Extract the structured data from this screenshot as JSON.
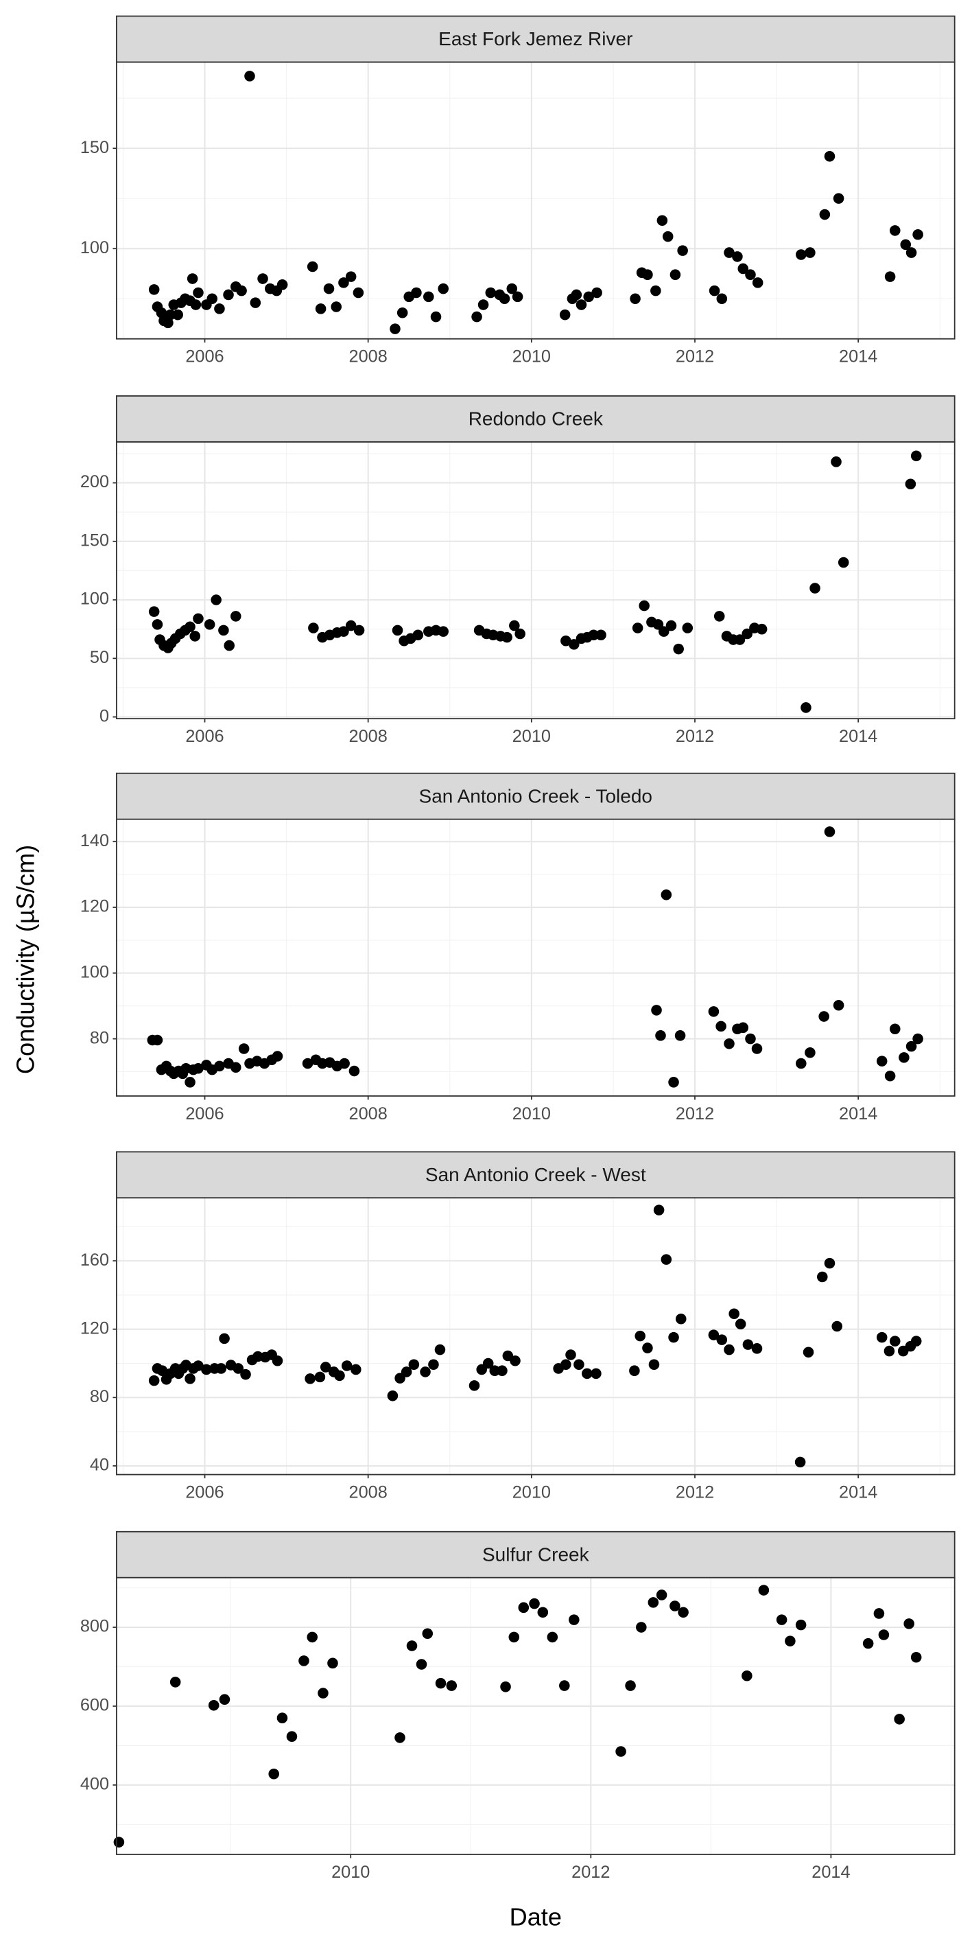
{
  "xlabel": "Date",
  "ylabel": "Conductivity (µS/cm)",
  "chart_data": [
    {
      "type": "scatter",
      "title": "East Fork Jemez River",
      "color": "#000000",
      "grid": true,
      "x": [
        2005.38,
        2005.42,
        2005.47,
        2005.5,
        2005.55,
        2005.58,
        2005.62,
        2005.67,
        2005.71,
        2005.76,
        2005.82,
        2005.85,
        2005.89,
        2005.92,
        2006.02,
        2006.09,
        2006.18,
        2006.29,
        2006.38,
        2006.45,
        2006.55,
        2006.62,
        2006.71,
        2006.8,
        2006.88,
        2006.95,
        2007.32,
        2007.42,
        2007.52,
        2007.61,
        2007.7,
        2007.79,
        2007.88,
        2008.33,
        2008.42,
        2008.5,
        2008.59,
        2008.74,
        2008.83,
        2008.92,
        2009.33,
        2009.41,
        2009.5,
        2009.61,
        2009.67,
        2009.76,
        2009.83,
        2010.41,
        2010.5,
        2010.55,
        2010.61,
        2010.7,
        2010.8,
        2011.27,
        2011.35,
        2011.42,
        2011.52,
        2011.6,
        2011.67,
        2011.76,
        2011.85,
        2012.24,
        2012.33,
        2012.42,
        2012.52,
        2012.59,
        2012.68,
        2012.77,
        2013.3,
        2013.41,
        2013.59,
        2013.65,
        2013.76,
        2014.39,
        2014.45,
        2014.58,
        2014.65,
        2014.73
      ],
      "values": [
        79.6,
        71,
        68,
        64,
        63,
        67,
        72,
        67,
        73,
        75,
        74,
        85,
        72,
        78,
        72,
        75,
        70,
        77,
        81,
        79,
        186,
        73,
        85,
        80,
        79,
        82,
        91,
        70,
        80,
        71,
        83,
        86,
        78,
        60,
        68,
        76,
        78,
        76,
        66,
        80,
        66,
        72,
        78,
        77,
        75,
        80,
        76,
        67,
        75,
        77,
        72,
        76,
        78,
        75,
        88,
        87,
        79,
        114,
        106,
        87,
        99,
        79,
        75,
        98,
        96,
        90,
        87,
        83,
        97,
        98,
        117,
        146,
        125,
        86,
        109,
        102,
        98,
        107
      ],
      "xlim": [
        2004.92,
        2015.18
      ],
      "xticks": [
        2006,
        2008,
        2010,
        2012,
        2014
      ],
      "ylim": [
        55,
        193
      ],
      "yticks": [
        100,
        150
      ]
    },
    {
      "type": "scatter",
      "title": "Redondo Creek",
      "color": "#000000",
      "grid": true,
      "x": [
        2005.38,
        2005.42,
        2005.45,
        2005.5,
        2005.55,
        2005.59,
        2005.64,
        2005.7,
        2005.76,
        2005.82,
        2005.88,
        2005.92,
        2006.06,
        2006.14,
        2006.23,
        2006.3,
        2006.38,
        2007.33,
        2007.44,
        2007.53,
        2007.62,
        2007.7,
        2007.79,
        2007.89,
        2008.36,
        2008.44,
        2008.52,
        2008.61,
        2008.74,
        2008.83,
        2008.92,
        2009.36,
        2009.45,
        2009.53,
        2009.62,
        2009.7,
        2009.79,
        2009.86,
        2010.42,
        2010.52,
        2010.61,
        2010.68,
        2010.76,
        2010.85,
        2011.3,
        2011.38,
        2011.47,
        2011.55,
        2011.62,
        2011.71,
        2011.8,
        2011.91,
        2012.3,
        2012.39,
        2012.47,
        2012.55,
        2012.64,
        2012.73,
        2012.82,
        2013.36,
        2013.47,
        2013.73,
        2013.82,
        2014.64,
        2014.71
      ],
      "values": [
        90,
        79,
        66,
        61,
        59,
        63,
        67,
        71,
        74,
        77,
        69,
        84,
        79,
        100,
        74,
        61,
        86,
        76,
        68,
        70,
        72,
        73,
        78,
        74,
        74,
        65,
        67,
        70,
        73,
        74,
        73,
        74,
        71,
        70,
        69,
        68,
        78,
        71,
        65,
        62,
        67,
        68,
        70,
        70,
        76,
        95,
        81,
        79,
        73,
        78,
        58,
        76,
        86,
        69,
        66,
        66,
        71,
        76,
        75,
        8,
        110,
        218,
        132,
        199,
        223
      ],
      "xlim": [
        2004.92,
        2015.18
      ],
      "xticks": [
        2006,
        2008,
        2010,
        2012,
        2014
      ],
      "ylim": [
        -1.5,
        235
      ],
      "yticks": [
        0,
        50,
        100,
        150,
        200
      ]
    },
    {
      "type": "scatter",
      "title": "San Antonio Creek - Toledo",
      "color": "#000000",
      "grid": true,
      "x": [
        2005.36,
        2005.42,
        2005.47,
        2005.53,
        2005.58,
        2005.62,
        2005.68,
        2005.73,
        2005.77,
        2005.82,
        2005.86,
        2005.92,
        2006.02,
        2006.09,
        2006.18,
        2006.29,
        2006.38,
        2006.48,
        2006.55,
        2006.64,
        2006.73,
        2006.82,
        2006.89,
        2007.26,
        2007.36,
        2007.44,
        2007.53,
        2007.62,
        2007.71,
        2007.83,
        2011.53,
        2011.58,
        2011.65,
        2011.74,
        2011.82,
        2012.23,
        2012.32,
        2012.42,
        2012.52,
        2012.59,
        2012.68,
        2012.76,
        2013.3,
        2013.41,
        2013.58,
        2013.65,
        2013.76,
        2014.29,
        2014.39,
        2014.45,
        2014.56,
        2014.65,
        2014.73
      ],
      "values": [
        79.6,
        79.6,
        70.6,
        71.7,
        70.2,
        69.4,
        70.2,
        69.4,
        71,
        66.8,
        70.6,
        71,
        72,
        70.6,
        71.7,
        72.5,
        71.3,
        77,
        72.5,
        73.2,
        72.5,
        73.6,
        74.7,
        72.5,
        73.6,
        72.5,
        72.8,
        71.7,
        72.5,
        70.2,
        88.7,
        81,
        123.8,
        66.8,
        81,
        88.3,
        83.8,
        78.5,
        83,
        83.4,
        80,
        77,
        72.5,
        75.8,
        86.8,
        143,
        90.2,
        73.2,
        68.7,
        83,
        74.3,
        77.7,
        80
      ],
      "xlim": [
        2004.92,
        2015.18
      ],
      "xticks": [
        2006,
        2008,
        2010,
        2012,
        2014
      ],
      "ylim": [
        62.6,
        146.8
      ],
      "yticks": [
        80,
        100,
        120,
        140
      ]
    },
    {
      "type": "scatter",
      "title": "San Antonio Creek - West",
      "color": "#000000",
      "grid": true,
      "x": [
        2005.38,
        2005.42,
        2005.48,
        2005.53,
        2005.58,
        2005.64,
        2005.68,
        2005.73,
        2005.77,
        2005.82,
        2005.86,
        2005.92,
        2006.02,
        2006.12,
        2006.2,
        2006.24,
        2006.32,
        2006.41,
        2006.5,
        2006.58,
        2006.65,
        2006.74,
        2006.82,
        2006.89,
        2007.29,
        2007.41,
        2007.48,
        2007.58,
        2007.65,
        2007.74,
        2007.85,
        2008.3,
        2008.39,
        2008.47,
        2008.56,
        2008.7,
        2008.8,
        2008.88,
        2009.3,
        2009.39,
        2009.47,
        2009.55,
        2009.64,
        2009.71,
        2009.8,
        2010.33,
        2010.42,
        2010.48,
        2010.58,
        2010.68,
        2010.79,
        2011.26,
        2011.33,
        2011.42,
        2011.5,
        2011.56,
        2011.65,
        2011.74,
        2011.83,
        2012.23,
        2012.33,
        2012.42,
        2012.48,
        2012.56,
        2012.65,
        2012.76,
        2013.29,
        2013.39,
        2013.56,
        2013.65,
        2013.74,
        2014.29,
        2014.38,
        2014.45,
        2014.55,
        2014.64,
        2014.71
      ],
      "values": [
        89.9,
        97,
        95.7,
        90.6,
        94,
        97,
        94,
        97,
        99,
        91,
        97,
        98.6,
        96.4,
        97,
        97,
        114.5,
        99,
        97,
        93.5,
        102,
        104,
        103.6,
        105,
        101.5,
        91,
        92,
        97.8,
        95,
        92.8,
        98.6,
        96.4,
        81,
        91.3,
        95,
        99.3,
        95,
        99.3,
        108,
        87,
        96.4,
        100,
        95.7,
        95.7,
        104.4,
        101.5,
        97,
        99.3,
        105,
        99.3,
        94,
        94,
        95.7,
        116,
        109,
        99.3,
        189.7,
        160.8,
        115.2,
        126,
        116.6,
        113.8,
        108,
        129,
        123,
        111,
        108.7,
        42.2,
        106.5,
        150.6,
        158.6,
        121.7,
        115.2,
        107.2,
        113,
        107.2,
        110,
        113
      ],
      "xlim": [
        2004.92,
        2015.18
      ],
      "xticks": [
        2006,
        2008,
        2010,
        2012,
        2014
      ],
      "ylim": [
        34.9,
        196.9
      ],
      "yticks": [
        40,
        80,
        120,
        160
      ]
    },
    {
      "type": "scatter",
      "title": "Sulfur Creek",
      "color": "#000000",
      "grid": true,
      "x": [
        2008.07,
        2008.54,
        2008.86,
        2008.95,
        2009.36,
        2009.43,
        2009.51,
        2009.61,
        2009.68,
        2009.77,
        2009.85,
        2010.41,
        2010.51,
        2010.59,
        2010.64,
        2010.75,
        2010.84,
        2011.29,
        2011.36,
        2011.44,
        2011.53,
        2011.6,
        2011.68,
        2011.78,
        2011.86,
        2012.25,
        2012.33,
        2012.42,
        2012.52,
        2012.59,
        2012.7,
        2012.77,
        2013.3,
        2013.44,
        2013.59,
        2013.66,
        2013.75,
        2014.31,
        2014.4,
        2014.44,
        2014.57,
        2014.65,
        2014.71
      ],
      "values": [
        255,
        661,
        602,
        617,
        428,
        570,
        523,
        715,
        775,
        633,
        709,
        520,
        753,
        706,
        784,
        658,
        652,
        649,
        775,
        850,
        860,
        838,
        775,
        652,
        819,
        485,
        652,
        800,
        863,
        882,
        854,
        838,
        677,
        894,
        819,
        765,
        806,
        759,
        835,
        781,
        567,
        809,
        724
      ],
      "xlim": [
        2008.05,
        2015.03
      ],
      "xticks": [
        2010,
        2012,
        2014
      ],
      "ylim": [
        224,
        926
      ],
      "yticks": [
        400,
        600,
        800
      ]
    }
  ]
}
